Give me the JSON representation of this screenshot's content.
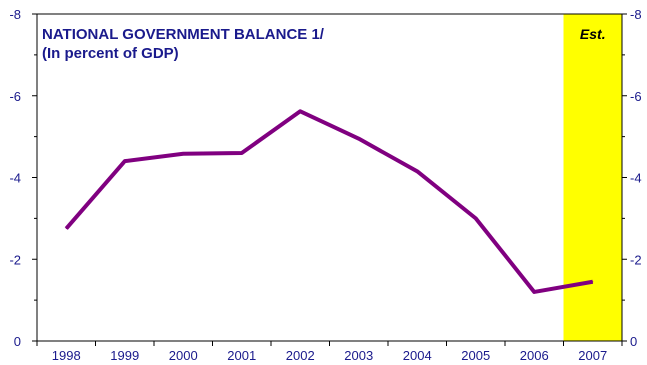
{
  "chart_data": {
    "type": "line",
    "title": "NATIONAL GOVERNMENT BALANCE 1/",
    "subtitle": "(In percent of GDP)",
    "categories": [
      "1998",
      "1999",
      "2000",
      "2001",
      "2002",
      "2003",
      "2004",
      "2005",
      "2006",
      "2007"
    ],
    "series": [
      {
        "values": [
          -2.75,
          -4.4,
          -4.58,
          -4.6,
          -5.62,
          -4.95,
          -4.15,
          -3.0,
          -1.2,
          -1.45
        ]
      }
    ],
    "ylim": [
      0,
      -8
    ],
    "y_ticks": [
      0,
      -2,
      -4,
      -6,
      -8
    ],
    "y_tick_labels": [
      "0",
      "-2",
      "-4",
      "-6",
      "-8"
    ],
    "y_axis_inverted": true,
    "y_axis_both_sides": true,
    "highlight": {
      "label": "Est.",
      "category": "2007",
      "color": "#ffff00"
    },
    "colors": {
      "line": "#800080",
      "text": "#1a1a8c",
      "axis": "#000000"
    },
    "grid": false,
    "legend": "none"
  }
}
